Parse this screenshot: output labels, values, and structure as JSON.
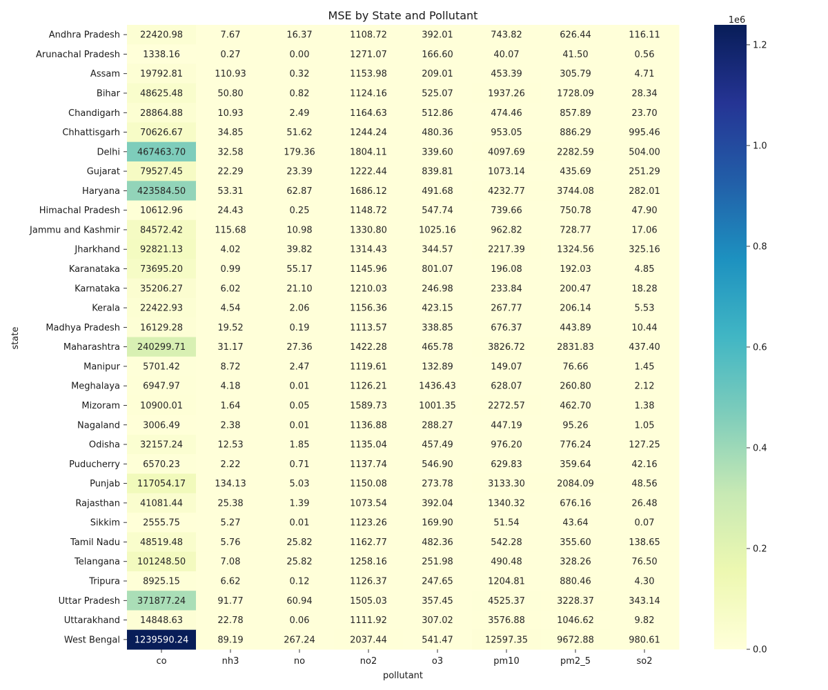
{
  "chart_data": {
    "type": "heatmap",
    "title": "MSE by State and Pollutant",
    "xlabel": "pollutant",
    "ylabel": "state",
    "colormap": "YlGnBu",
    "colorbar": {
      "min": 0,
      "max": 1239590.24,
      "exponent_label": "1e6",
      "ticks": [
        0.0,
        0.2,
        0.4,
        0.6,
        0.8,
        1.0,
        1.2
      ],
      "tick_labels": [
        "0.0",
        "0.2",
        "0.4",
        "0.6",
        "0.8",
        "1.0",
        "1.2"
      ]
    },
    "x_categories": [
      "co",
      "nh3",
      "no",
      "no2",
      "o3",
      "pm10",
      "pm2_5",
      "so2"
    ],
    "y_categories": [
      "Andhra Pradesh",
      "Arunachal Pradesh",
      "Assam",
      "Bihar",
      "Chandigarh",
      "Chhattisgarh",
      "Delhi",
      "Gujarat",
      "Haryana",
      "Himachal Pradesh",
      "Jammu and Kashmir",
      "Jharkhand",
      "Karanataka",
      "Karnataka",
      "Kerala",
      "Madhya Pradesh",
      "Maharashtra",
      "Manipur",
      "Meghalaya",
      "Mizoram",
      "Nagaland",
      "Odisha",
      "Puducherry",
      "Punjab",
      "Rajasthan",
      "Sikkim",
      "Tamil Nadu",
      "Telangana",
      "Tripura",
      "Uttar Pradesh",
      "Uttarakhand",
      "West Bengal"
    ],
    "values": [
      [
        22420.98,
        7.67,
        16.37,
        1108.72,
        392.01,
        743.82,
        626.44,
        116.11
      ],
      [
        1338.16,
        0.27,
        0.0,
        1271.07,
        166.6,
        40.07,
        41.5,
        0.56
      ],
      [
        19792.81,
        110.93,
        0.32,
        1153.98,
        209.01,
        453.39,
        305.79,
        4.71
      ],
      [
        48625.48,
        50.8,
        0.82,
        1124.16,
        525.07,
        1937.26,
        1728.09,
        28.34
      ],
      [
        28864.88,
        10.93,
        2.49,
        1164.63,
        512.86,
        474.46,
        857.89,
        23.7
      ],
      [
        70626.67,
        34.85,
        51.62,
        1244.24,
        480.36,
        953.05,
        886.29,
        995.46
      ],
      [
        467463.7,
        32.58,
        179.36,
        1804.11,
        339.6,
        4097.69,
        2282.59,
        504.0
      ],
      [
        79527.45,
        22.29,
        23.39,
        1222.44,
        839.81,
        1073.14,
        435.69,
        251.29
      ],
      [
        423584.5,
        53.31,
        62.87,
        1686.12,
        491.68,
        4232.77,
        3744.08,
        282.01
      ],
      [
        10612.96,
        24.43,
        0.25,
        1148.72,
        547.74,
        739.66,
        750.78,
        47.9
      ],
      [
        84572.42,
        115.68,
        10.98,
        1330.8,
        1025.16,
        962.82,
        728.77,
        17.06
      ],
      [
        92821.13,
        4.02,
        39.82,
        1314.43,
        344.57,
        2217.39,
        1324.56,
        325.16
      ],
      [
        73695.2,
        0.99,
        55.17,
        1145.96,
        801.07,
        196.08,
        192.03,
        4.85
      ],
      [
        35206.27,
        6.02,
        21.1,
        1210.03,
        246.98,
        233.84,
        200.47,
        18.28
      ],
      [
        22422.93,
        4.54,
        2.06,
        1156.36,
        423.15,
        267.77,
        206.14,
        5.53
      ],
      [
        16129.28,
        19.52,
        0.19,
        1113.57,
        338.85,
        676.37,
        443.89,
        10.44
      ],
      [
        240299.71,
        31.17,
        27.36,
        1422.28,
        465.78,
        3826.72,
        2831.83,
        437.4
      ],
      [
        5701.42,
        8.72,
        2.47,
        1119.61,
        132.89,
        149.07,
        76.66,
        1.45
      ],
      [
        6947.97,
        4.18,
        0.01,
        1126.21,
        1436.43,
        628.07,
        260.8,
        2.12
      ],
      [
        10900.01,
        1.64,
        0.05,
        1589.73,
        1001.35,
        2272.57,
        462.7,
        1.38
      ],
      [
        3006.49,
        2.38,
        0.01,
        1136.88,
        288.27,
        447.19,
        95.26,
        1.05
      ],
      [
        32157.24,
        12.53,
        1.85,
        1135.04,
        457.49,
        976.2,
        776.24,
        127.25
      ],
      [
        6570.23,
        2.22,
        0.71,
        1137.74,
        546.9,
        629.83,
        359.64,
        42.16
      ],
      [
        117054.17,
        134.13,
        5.03,
        1150.08,
        273.78,
        3133.3,
        2084.09,
        48.56
      ],
      [
        41081.44,
        25.38,
        1.39,
        1073.54,
        392.04,
        1340.32,
        676.16,
        26.48
      ],
      [
        2555.75,
        5.27,
        0.01,
        1123.26,
        169.9,
        51.54,
        43.64,
        0.07
      ],
      [
        48519.48,
        5.76,
        25.82,
        1162.77,
        482.36,
        542.28,
        355.6,
        138.65
      ],
      [
        101248.5,
        7.08,
        25.82,
        1258.16,
        251.98,
        490.48,
        328.26,
        76.5
      ],
      [
        8925.15,
        6.62,
        0.12,
        1126.37,
        247.65,
        1204.81,
        880.46,
        4.3
      ],
      [
        371877.24,
        91.77,
        60.94,
        1505.03,
        357.45,
        4525.37,
        3228.37,
        343.14
      ],
      [
        14848.63,
        22.78,
        0.06,
        1111.92,
        307.02,
        3576.88,
        1046.62,
        9.82
      ],
      [
        1239590.24,
        89.19,
        267.24,
        2037.44,
        541.47,
        12597.35,
        9672.88,
        980.61
      ]
    ]
  }
}
